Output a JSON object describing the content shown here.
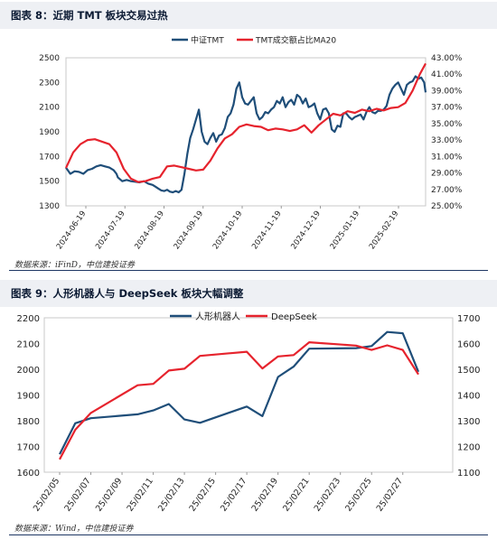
{
  "figures": [
    {
      "title": "图表 8：近期 TMT 板块交易过热",
      "source": "数据来源：iFinD，中信建投证券"
    },
    {
      "title": "图表 9：人形机器人与 DeepSeek 板块大幅调整",
      "source": "数据来源：Wind，中信建投证券"
    }
  ],
  "chart_data": [
    {
      "type": "line",
      "categories": [
        "2024-06-19",
        "2024-07-19",
        "2024-08-19",
        "2024-09-19",
        "2024-10-19",
        "2024-11-19",
        "2024-12-19",
        "2025-01-19",
        "2025-02-19"
      ],
      "y_left": {
        "ylim": [
          1300,
          2500
        ],
        "ticks": [
          1300,
          1500,
          1700,
          1900,
          2100,
          2300,
          2500
        ]
      },
      "y_right": {
        "ylim": [
          25,
          43
        ],
        "ticks": [
          "25.00%",
          "27.00%",
          "29.00%",
          "31.00%",
          "33.00%",
          "35.00%",
          "37.00%",
          "39.00%",
          "41.00%",
          "43.00%"
        ]
      },
      "legend_position": "top",
      "series": [
        {
          "name": "中证TMT",
          "axis": "left",
          "color": "#1f4e79",
          "x": [
            0,
            3,
            6,
            9,
            12,
            15,
            18,
            21,
            24,
            27,
            30,
            33,
            35,
            36,
            39,
            42,
            45,
            48,
            51,
            54,
            57,
            60,
            62,
            64,
            66,
            68,
            70,
            72,
            74,
            76,
            78,
            80,
            82,
            84,
            86,
            88,
            90,
            92,
            94,
            96,
            98,
            100,
            102,
            104,
            106,
            108,
            110,
            112,
            114,
            116,
            118,
            120,
            122,
            124,
            126,
            128,
            130,
            132,
            134,
            136,
            138,
            140,
            142,
            144,
            146,
            148,
            150,
            152,
            154,
            156,
            158,
            160,
            162,
            164,
            166,
            168,
            170,
            172,
            174,
            176,
            178,
            180,
            182,
            184,
            186,
            188,
            190,
            192,
            194,
            196,
            198,
            200,
            202,
            204,
            206,
            208,
            210,
            212,
            214,
            216,
            218,
            220,
            222,
            224,
            226,
            228,
            230,
            232,
            234,
            236,
            238,
            240,
            242,
            244,
            246,
            248,
            249
          ],
          "y": [
            1610,
            1560,
            1580,
            1575,
            1560,
            1590,
            1600,
            1620,
            1630,
            1620,
            1610,
            1590,
            1560,
            1530,
            1500,
            1510,
            1500,
            1495,
            1490,
            1500,
            1480,
            1470,
            1455,
            1440,
            1425,
            1420,
            1430,
            1415,
            1410,
            1420,
            1410,
            1430,
            1560,
            1720,
            1850,
            1920,
            2000,
            2080,
            1900,
            1820,
            1800,
            1850,
            1890,
            1820,
            1870,
            1880,
            1930,
            2020,
            2050,
            2120,
            2250,
            2300,
            2180,
            2130,
            2120,
            2150,
            2180,
            2050,
            2000,
            2020,
            2060,
            2050,
            2080,
            2100,
            2150,
            2130,
            2180,
            2100,
            2140,
            2160,
            2120,
            2200,
            2180,
            2130,
            2170,
            2100,
            2110,
            2130,
            2050,
            2000,
            2080,
            2090,
            2050,
            1920,
            1900,
            1950,
            1940,
            2050,
            2050,
            2020,
            2000,
            2020,
            2030,
            2040,
            2000,
            2060,
            2100,
            2060,
            2050,
            2070,
            2070,
            2080,
            2110,
            2200,
            2250,
            2280,
            2300,
            2250,
            2200,
            2280,
            2300,
            2310,
            2350,
            2330,
            2340,
            2300,
            2220
          ]
        },
        {
          "name": "TMT成交额占比MA20",
          "axis": "right",
          "color": "#e6232d",
          "x": [
            0,
            5,
            10,
            15,
            20,
            25,
            30,
            35,
            40,
            45,
            50,
            55,
            60,
            65,
            70,
            75,
            80,
            85,
            90,
            95,
            100,
            105,
            110,
            115,
            120,
            125,
            130,
            135,
            140,
            145,
            150,
            155,
            160,
            165,
            170,
            175,
            180,
            185,
            190,
            195,
            200,
            205,
            210,
            215,
            220,
            225,
            230,
            235,
            240,
            245,
            249
          ],
          "y": [
            29.6,
            31.5,
            32.5,
            33.0,
            33.1,
            32.8,
            32.5,
            31.5,
            29.5,
            28.3,
            27.9,
            28.0,
            28.3,
            28.5,
            29.8,
            29.9,
            29.7,
            29.5,
            29.3,
            29.4,
            30.5,
            32.0,
            33.2,
            33.7,
            34.6,
            34.9,
            34.7,
            34.6,
            34.2,
            34.4,
            34.3,
            34.1,
            34.3,
            34.8,
            33.9,
            34.8,
            35.5,
            36.2,
            36.0,
            36.5,
            36.3,
            36.7,
            36.5,
            36.8,
            36.6,
            36.9,
            37.0,
            37.5,
            39.0,
            41.0,
            42.3
          ]
        }
      ]
    },
    {
      "type": "line",
      "categories": [
        "25/02/05",
        "25/02/06",
        "25/02/07",
        "25/02/08",
        "25/02/09",
        "25/02/10",
        "25/02/11",
        "25/02/12",
        "25/02/13",
        "25/02/14",
        "25/02/15",
        "25/02/16",
        "25/02/17",
        "25/02/18",
        "25/02/19",
        "25/02/20",
        "25/02/21",
        "25/02/22",
        "25/02/23",
        "25/02/24",
        "25/02/25",
        "25/02/26",
        "25/02/27",
        "25/02/28"
      ],
      "x_tick_labels": [
        "25/02/05",
        "25/02/07",
        "25/02/09",
        "25/02/11",
        "25/02/13",
        "25/02/15",
        "25/02/17",
        "25/02/19",
        "25/02/21",
        "25/02/23",
        "25/02/25",
        "25/02/27"
      ],
      "y_left": {
        "ylim": [
          1600,
          2200
        ],
        "ticks": [
          1600,
          1700,
          1800,
          1900,
          2000,
          2100,
          2200
        ]
      },
      "y_right": {
        "ylim": [
          1100,
          1700
        ],
        "ticks": [
          1100,
          1200,
          1300,
          1400,
          1500,
          1600,
          1700
        ]
      },
      "legend_position": "top",
      "series": [
        {
          "name": "人形机器人",
          "axis": "left",
          "color": "#1f4e79",
          "x": [
            "25/02/05",
            "25/02/06",
            "25/02/07",
            "25/02/10",
            "25/02/11",
            "25/02/12",
            "25/02/13",
            "25/02/14",
            "25/02/17",
            "25/02/18",
            "25/02/19",
            "25/02/20",
            "25/02/21",
            "25/02/24",
            "25/02/25",
            "25/02/26",
            "25/02/27",
            "25/02/28"
          ],
          "y": [
            1670,
            1790,
            1810,
            1825,
            1840,
            1865,
            1805,
            1792,
            1855,
            1818,
            1970,
            2010,
            2080,
            2082,
            2090,
            2145,
            2140,
            1990
          ]
        },
        {
          "name": "DeepSeek",
          "axis": "right",
          "color": "#e6232d",
          "x": [
            "25/02/05",
            "25/02/06",
            "25/02/07",
            "25/02/10",
            "25/02/11",
            "25/02/12",
            "25/02/13",
            "25/02/14",
            "25/02/17",
            "25/02/18",
            "25/02/19",
            "25/02/20",
            "25/02/21",
            "25/02/24",
            "25/02/25",
            "25/02/26",
            "25/02/27",
            "25/02/28"
          ],
          "y": [
            1150,
            1265,
            1330,
            1438,
            1443,
            1495,
            1502,
            1552,
            1568,
            1503,
            1550,
            1555,
            1605,
            1592,
            1575,
            1593,
            1575,
            1480
          ]
        }
      ]
    }
  ]
}
